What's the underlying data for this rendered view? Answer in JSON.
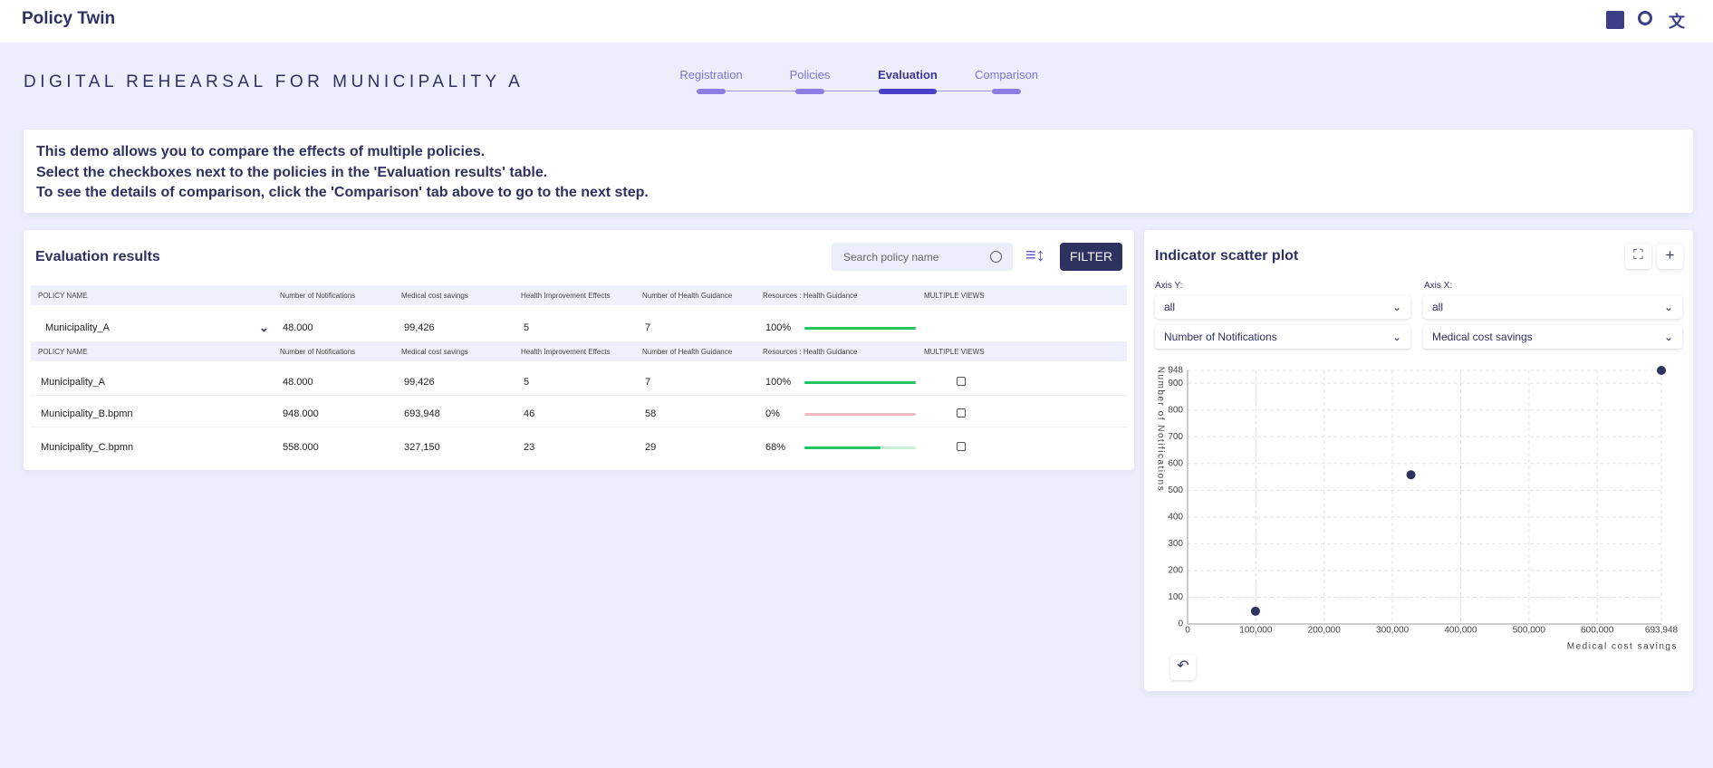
{
  "header": {
    "title": "Policy Twin"
  },
  "page": {
    "title": "DIGITAL REHEARSAL FOR MUNICIPALITY A"
  },
  "steps": [
    "Registration",
    "Policies",
    "Evaluation",
    "Comparison"
  ],
  "info": {
    "lines": [
      "This demo allows you to compare the effects of multiple policies.",
      "Select the checkboxes next to the policies in the 'Evaluation results' table.",
      "To see the details of comparison, click the 'Comparison' tab above to go to the next step."
    ]
  },
  "results": {
    "title": "Evaluation results",
    "search_placeholder": "Search policy name",
    "filter": "FILTER",
    "columns": [
      "POLICY NAME",
      "Number of Notifications",
      "Medical cost savings",
      "Health Improvement Effects",
      "Number of Health Guidance",
      "Resources : Health Guidance",
      "MULTIPLE VIEWS"
    ],
    "selected": {
      "cells": [
        "Municipality_A",
        "48.000",
        "99,426",
        "5",
        "7"
      ],
      "resources": {
        "value": 100,
        "label": "100%"
      }
    },
    "rows": [
      {
        "cells": [
          "Municipality_A",
          "48.000",
          "99,426",
          "5",
          "7"
        ],
        "resources": {
          "value": 100,
          "label": "100%"
        }
      },
      {
        "cells": [
          "Municipality_B.bpmn",
          "948.000",
          "693,948",
          "46",
          "58"
        ],
        "resources": {
          "value": 0,
          "label": "0%"
        }
      },
      {
        "cells": [
          "Municipality_C.bpmn",
          "558.000",
          "327,150",
          "23",
          "29"
        ],
        "resources": {
          "value": 68,
          "label": "68%"
        }
      }
    ]
  },
  "scatter": {
    "title": "Indicator scatter plot",
    "axis_y_label": "Axis Y:",
    "axis_x_label": "Axis X:",
    "y_group": "all",
    "x_group": "all",
    "y_select": "Number of Notifications",
    "x_select": "Medical cost savings"
  },
  "chart_data": {
    "type": "scatter",
    "x_label": "Medical cost savings",
    "y_label": "Number of Notifications",
    "color": "#2e3260",
    "grid": true,
    "x": [
      99426,
      693948,
      327150
    ],
    "values": [
      48,
      948,
      558
    ],
    "xlim": [
      0,
      693948
    ],
    "ylim": [
      0,
      948
    ],
    "xticks": [
      0,
      {
        "value": 100000,
        "label": "100,000"
      },
      {
        "value": 200000,
        "label": "200,000"
      },
      {
        "value": 300000,
        "label": "300,000"
      },
      {
        "value": 400000,
        "label": "400,000"
      },
      {
        "value": 500000,
        "label": "500,000"
      },
      {
        "value": 600000,
        "label": "600,000"
      },
      {
        "value": 693948,
        "label": "693,948"
      }
    ],
    "yticks": [
      0,
      100,
      200,
      300,
      400,
      500,
      600,
      700,
      800,
      900,
      948
    ]
  }
}
